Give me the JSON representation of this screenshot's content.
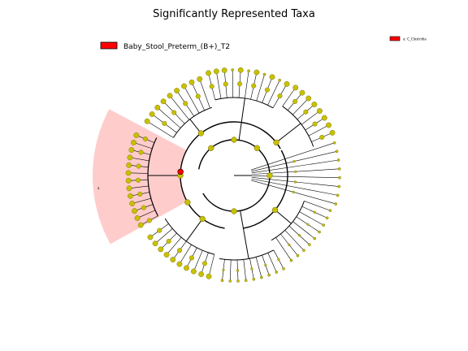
{
  "title": "Significantly Represented Taxa",
  "legend": {
    "label": "Baby_Stool_Preterm_(B+)_T2",
    "color": "#ff0000"
  },
  "clade_key": {
    "text": "a: C_Clostridia"
  },
  "clade_marker": {
    "letter": "a",
    "highlight_color": "#ffcccc"
  },
  "colors": {
    "node_fill": "#c8c000",
    "node_highlight": "#ff0000",
    "edge": "#000000"
  }
}
